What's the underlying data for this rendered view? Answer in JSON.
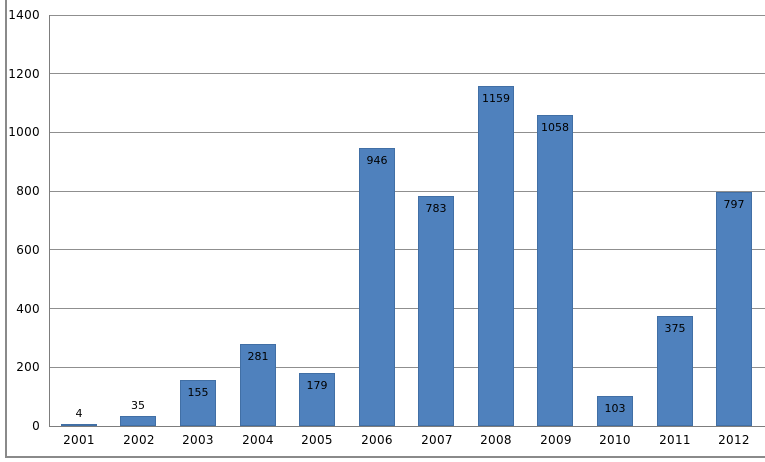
{
  "chart_data": {
    "type": "bar",
    "title": "",
    "xlabel": "",
    "ylabel": "",
    "categories": [
      "2001",
      "2002",
      "2003",
      "2004",
      "2005",
      "2006",
      "2007",
      "2008",
      "2009",
      "2010",
      "2011",
      "2012"
    ],
    "values": [
      4,
      35,
      155,
      281,
      179,
      946,
      783,
      1159,
      1058,
      103,
      375,
      797
    ],
    "data_labels": [
      "4",
      "35",
      "155",
      "281",
      "179",
      "946",
      "783",
      "1159",
      "1058",
      "103",
      "375",
      "797"
    ],
    "ylim": [
      0,
      1400
    ],
    "ytick_step": 200,
    "ytick_labels": [
      "0",
      "200",
      "400",
      "600",
      "800",
      "1000",
      "1200",
      "1400"
    ],
    "grid": true,
    "legend": false,
    "colors": {
      "bar_fill": "#4f81bd",
      "bar_border": "#416fa5",
      "gridline": "#8f8f8f",
      "axis_line": "#7d7d7d",
      "frame_border": "#8a8a8a",
      "label_text": "#000000",
      "background": "#ffffff"
    }
  }
}
